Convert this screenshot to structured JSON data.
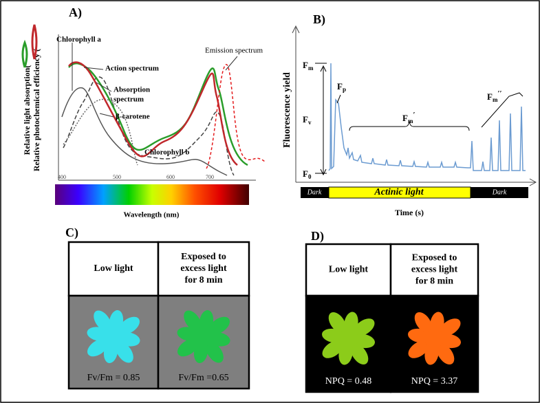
{
  "panels": [
    {
      "label": "A)",
      "y_label_1": "Relative light absorption(",
      "y_label_2": "Relative photochemical efficiency (",
      "x_label": "Wavelength (nm)",
      "x_ticks": [
        400,
        500,
        600,
        700
      ],
      "annotations": {
        "chlorophyll_a": "Chlorophyll a",
        "action": "Action spectrum",
        "absorption": [
          "Absorption",
          "spectrum"
        ],
        "carotene": "β-carotene",
        "chlorophyll_b": "Chlorophyll b",
        "emission": "Emission spectrum"
      }
    },
    {
      "label": "B)",
      "y_label": "Fluorescence yield",
      "x_label": "Time (s)",
      "phases": [
        "Dark",
        "Actinic light",
        "Dark"
      ],
      "markers": {
        "fm": {
          "base": "F",
          "sub": "m"
        },
        "fv": {
          "base": "F",
          "sub": "v"
        },
        "f0": {
          "base": "F",
          "sub": "0"
        },
        "fp": {
          "base": "F",
          "sub": "p"
        },
        "fm1": {
          "base": "F",
          "sub": "m",
          "sup": "′"
        },
        "fm2": {
          "base": "F",
          "sub": "m",
          "sup": "′′"
        }
      }
    },
    {
      "label": "C)",
      "cells": [
        {
          "caption": [
            "Low light"
          ],
          "value_text": "Fv/Fm = 0.85"
        },
        {
          "caption": [
            "Exposed to",
            "excess light",
            "for 8 min"
          ],
          "value_text": "Fv/Fm =0.65"
        }
      ]
    },
    {
      "label": "D)",
      "cells": [
        {
          "caption": [
            "Low light"
          ],
          "value_text": "NPQ = 0.48"
        },
        {
          "caption": [
            "Exposed to",
            "excess light",
            "for 8 min"
          ],
          "value_text": "NPQ = 3.37"
        }
      ]
    }
  ]
}
